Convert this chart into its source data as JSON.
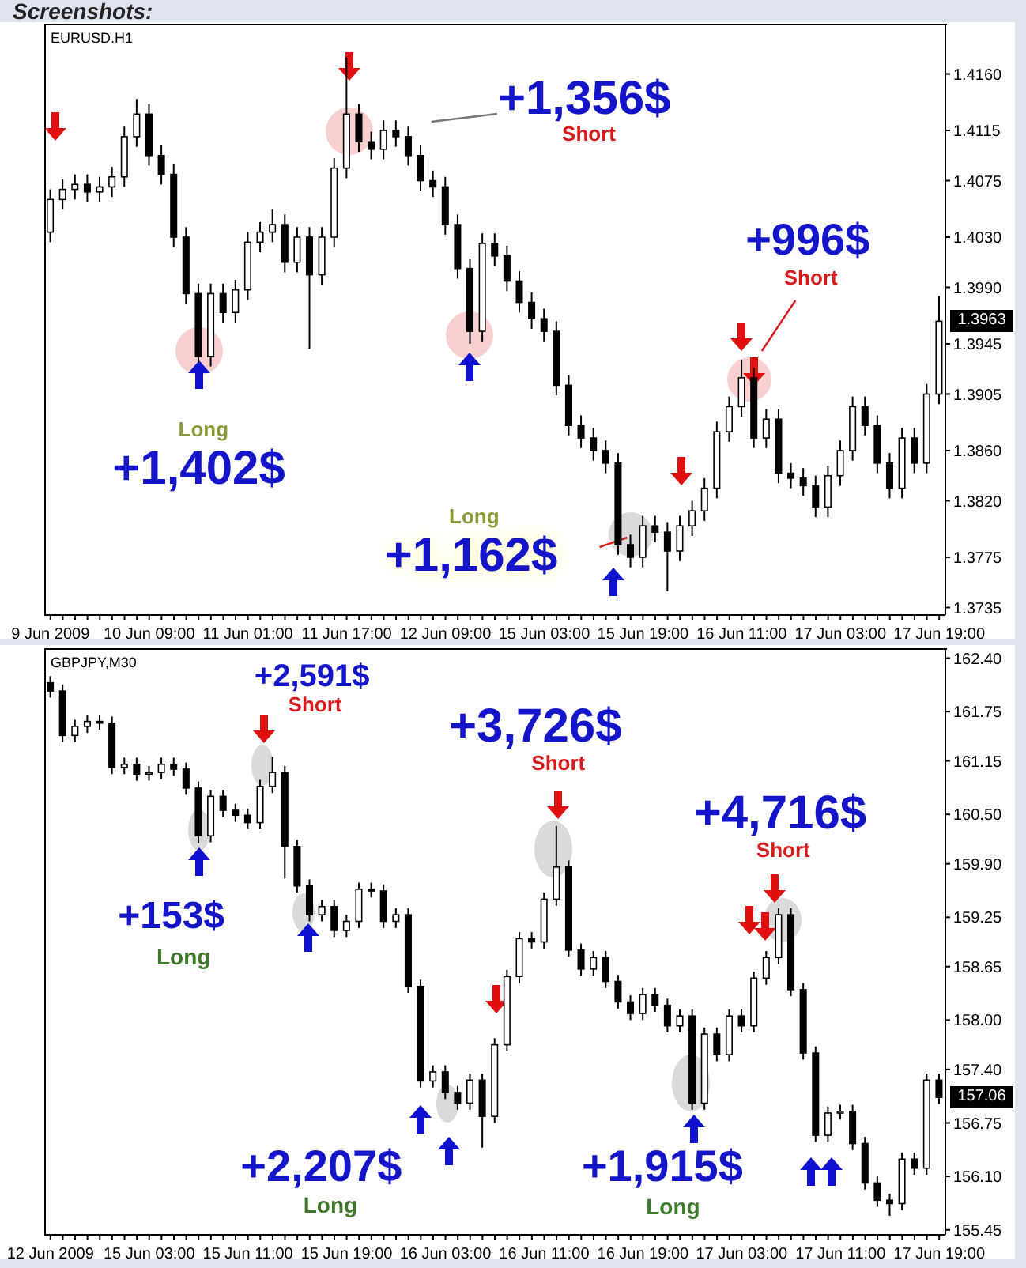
{
  "chart_data": [
    {
      "type": "candlestick",
      "title": "EURUSD.H1",
      "categories": [
        "9 Jun 2009",
        null,
        null,
        null,
        null,
        null,
        null,
        null,
        "10 Jun 09:00",
        null,
        null,
        null,
        null,
        null,
        null,
        null,
        "11 Jun 01:00",
        null,
        null,
        null,
        null,
        null,
        null,
        null,
        "11 Jun 17:00",
        null,
        null,
        null,
        null,
        null,
        null,
        null,
        "12 Jun 09:00",
        null,
        null,
        null,
        null,
        null,
        null,
        null,
        "15 Jun 03:00",
        null,
        null,
        null,
        null,
        null,
        null,
        null,
        "15 Jun 19:00",
        null,
        null,
        null,
        null,
        null,
        null,
        null,
        "16 Jun 11:00",
        null,
        null,
        null,
        null,
        null,
        null,
        null,
        "17 Jun 03:00",
        null,
        null,
        null,
        null,
        null,
        null,
        null,
        "17 Jun 19:00"
      ],
      "ohlc": [
        [
          1.4034,
          1.4068,
          1.4026,
          1.406
        ],
        [
          1.406,
          1.4076,
          1.4052,
          1.4068
        ],
        [
          1.4068,
          1.408,
          1.406,
          1.4072
        ],
        [
          1.4072,
          1.408,
          1.4058,
          1.4066
        ],
        [
          1.4066,
          1.4078,
          1.4058,
          1.407
        ],
        [
          1.407,
          1.4086,
          1.4062,
          1.4078
        ],
        [
          1.4078,
          1.4118,
          1.407,
          1.411
        ],
        [
          1.411,
          1.414,
          1.4102,
          1.4128
        ],
        [
          1.4128,
          1.4136,
          1.4087,
          1.4095
        ],
        [
          1.4095,
          1.4103,
          1.4072,
          1.408
        ],
        [
          1.408,
          1.4088,
          1.4022,
          1.403
        ],
        [
          1.403,
          1.4038,
          1.3977,
          1.3985
        ],
        [
          1.3985,
          1.3993,
          1.393,
          1.3935
        ],
        [
          1.3935,
          1.3993,
          1.3927,
          1.3985
        ],
        [
          1.3985,
          1.3993,
          1.3962,
          1.397
        ],
        [
          1.397,
          1.3996,
          1.3962,
          1.3988
        ],
        [
          1.3988,
          1.4034,
          1.398,
          1.4026
        ],
        [
          1.4026,
          1.4042,
          1.4018,
          1.4034
        ],
        [
          1.4034,
          1.4052,
          1.4026,
          1.404
        ],
        [
          1.404,
          1.4048,
          1.4002,
          1.401
        ],
        [
          1.401,
          1.4038,
          1.4002,
          1.403
        ],
        [
          1.403,
          1.4038,
          1.3941,
          1.4
        ],
        [
          1.4,
          1.4038,
          1.3992,
          1.403
        ],
        [
          1.403,
          1.4093,
          1.4022,
          1.4085
        ],
        [
          1.4085,
          1.4173,
          1.4077,
          1.4128
        ],
        [
          1.4128,
          1.4136,
          1.4098,
          1.4106
        ],
        [
          1.4106,
          1.4114,
          1.4092,
          1.41
        ],
        [
          1.41,
          1.4123,
          1.4092,
          1.4115
        ],
        [
          1.4115,
          1.4123,
          1.4102,
          1.411
        ],
        [
          1.411,
          1.4118,
          1.4087,
          1.4095
        ],
        [
          1.4095,
          1.4103,
          1.4067,
          1.4075
        ],
        [
          1.4075,
          1.4083,
          1.4062,
          1.407
        ],
        [
          1.407,
          1.4078,
          1.4032,
          1.404
        ],
        [
          1.404,
          1.4048,
          1.3997,
          1.4005
        ],
        [
          1.4005,
          1.4013,
          1.3945,
          1.3955
        ],
        [
          1.3955,
          1.4033,
          1.3947,
          1.4025
        ],
        [
          1.4025,
          1.4033,
          1.4007,
          1.4015
        ],
        [
          1.4015,
          1.4023,
          1.3987,
          1.3995
        ],
        [
          1.3995,
          1.4003,
          1.397,
          1.3978
        ],
        [
          1.3978,
          1.3986,
          1.3957,
          1.3965
        ],
        [
          1.3965,
          1.3973,
          1.3947,
          1.3955
        ],
        [
          1.3955,
          1.3963,
          1.3904,
          1.3912
        ],
        [
          1.3912,
          1.392,
          1.3872,
          1.388
        ],
        [
          1.388,
          1.3888,
          1.3862,
          1.387
        ],
        [
          1.387,
          1.3878,
          1.3852,
          1.386
        ],
        [
          1.386,
          1.3868,
          1.3842,
          1.385
        ],
        [
          1.385,
          1.3858,
          1.3777,
          1.3785
        ],
        [
          1.3785,
          1.3793,
          1.3767,
          1.3775
        ],
        [
          1.3775,
          1.3808,
          1.3767,
          1.38
        ],
        [
          1.38,
          1.3808,
          1.3787,
          1.3795
        ],
        [
          1.3795,
          1.3803,
          1.3748,
          1.378
        ],
        [
          1.378,
          1.3808,
          1.3772,
          1.38
        ],
        [
          1.38,
          1.382,
          1.3792,
          1.3812
        ],
        [
          1.3812,
          1.3838,
          1.3804,
          1.383
        ],
        [
          1.383,
          1.3883,
          1.3822,
          1.3875
        ],
        [
          1.3875,
          1.3903,
          1.3867,
          1.3895
        ],
        [
          1.3895,
          1.3932,
          1.3887,
          1.3918
        ],
        [
          1.3918,
          1.3926,
          1.3862,
          1.387
        ],
        [
          1.387,
          1.3893,
          1.3862,
          1.3885
        ],
        [
          1.3885,
          1.3893,
          1.3834,
          1.3842
        ],
        [
          1.3842,
          1.385,
          1.383,
          1.3838
        ],
        [
          1.3838,
          1.3846,
          1.3824,
          1.3832
        ],
        [
          1.3832,
          1.384,
          1.3807,
          1.3815
        ],
        [
          1.3815,
          1.3848,
          1.3807,
          1.384
        ],
        [
          1.384,
          1.3868,
          1.3832,
          1.386
        ],
        [
          1.386,
          1.3903,
          1.3852,
          1.3895
        ],
        [
          1.3895,
          1.3903,
          1.3872,
          1.388
        ],
        [
          1.388,
          1.3888,
          1.3842,
          1.385
        ],
        [
          1.385,
          1.3858,
          1.3822,
          1.383
        ],
        [
          1.383,
          1.3878,
          1.3822,
          1.387
        ],
        [
          1.387,
          1.3878,
          1.3842,
          1.385
        ],
        [
          1.385,
          1.3913,
          1.3842,
          1.3905
        ],
        [
          1.3905,
          1.3983,
          1.3897,
          1.3963
        ]
      ],
      "ylim": [
        1.3729,
        1.42
      ],
      "yticks": [
        {
          "value": 1.416,
          "label": "1.4160"
        },
        {
          "value": 1.4115,
          "label": "1.4115"
        },
        {
          "value": 1.4075,
          "label": "1.4075"
        },
        {
          "value": 1.403,
          "label": "1.4030"
        },
        {
          "value": 1.399,
          "label": "1.3990"
        },
        {
          "value": 1.3945,
          "label": "1.3945"
        },
        {
          "value": 1.3905,
          "label": "1.3905"
        },
        {
          "value": 1.386,
          "label": "1.3860"
        },
        {
          "value": 1.382,
          "label": "1.3820"
        },
        {
          "value": 1.3775,
          "label": "1.3775"
        },
        {
          "value": 1.3735,
          "label": "1.3735"
        }
      ],
      "annotations": [
        "Screenshots:",
        "+1,402$",
        "Long",
        "+1,356$",
        "Short",
        "+1,162$",
        "Long",
        "+996$",
        "Short",
        {
          "text": "1.3963",
          "y": 1.3963
        }
      ]
    },
    {
      "type": "candlestick",
      "title": "GBPJPY,M30",
      "categories": [
        "12 Jun 2009",
        null,
        null,
        null,
        null,
        null,
        null,
        null,
        "15 Jun 03:00",
        null,
        null,
        null,
        null,
        null,
        null,
        null,
        "15 Jun 11:00",
        null,
        null,
        null,
        null,
        null,
        null,
        null,
        "15 Jun 19:00",
        null,
        null,
        null,
        null,
        null,
        null,
        null,
        "16 Jun 03:00",
        null,
        null,
        null,
        null,
        null,
        null,
        null,
        "16 Jun 11:00",
        null,
        null,
        null,
        null,
        null,
        null,
        null,
        "16 Jun 19:00",
        null,
        null,
        null,
        null,
        null,
        null,
        null,
        "17 Jun 03:00",
        null,
        null,
        null,
        null,
        null,
        null,
        null,
        "17 Jun 11:00",
        null,
        null,
        null,
        null,
        null,
        null,
        null,
        "17 Jun 19:00"
      ],
      "ohlc": [
        [
          162.1,
          162.18,
          161.92,
          162.0
        ],
        [
          162.0,
          162.08,
          161.38,
          161.46
        ],
        [
          161.46,
          161.65,
          161.38,
          161.57
        ],
        [
          161.57,
          161.71,
          161.49,
          161.63
        ],
        [
          161.63,
          161.71,
          161.53,
          161.61
        ],
        [
          161.61,
          161.69,
          160.99,
          161.07
        ],
        [
          161.07,
          161.19,
          160.99,
          161.11
        ],
        [
          161.11,
          161.19,
          160.91,
          160.99
        ],
        [
          160.99,
          161.09,
          160.91,
          161.01
        ],
        [
          161.01,
          161.19,
          160.93,
          161.11
        ],
        [
          161.11,
          161.19,
          160.97,
          161.05
        ],
        [
          161.05,
          161.13,
          160.74,
          160.82
        ],
        [
          160.82,
          160.9,
          160.15,
          160.24
        ],
        [
          160.24,
          160.8,
          160.16,
          160.72
        ],
        [
          160.72,
          160.8,
          160.47,
          160.55
        ],
        [
          160.55,
          160.63,
          160.41,
          160.49
        ],
        [
          160.49,
          160.57,
          160.32,
          160.4
        ],
        [
          160.4,
          160.92,
          160.32,
          160.84
        ],
        [
          160.84,
          161.2,
          160.76,
          161.01
        ],
        [
          161.01,
          161.09,
          159.72,
          160.11
        ],
        [
          160.11,
          160.19,
          159.55,
          159.63
        ],
        [
          159.63,
          159.71,
          159.2,
          159.28
        ],
        [
          159.28,
          159.46,
          159.2,
          159.38
        ],
        [
          159.38,
          159.46,
          159.01,
          159.09
        ],
        [
          159.09,
          159.28,
          159.01,
          159.2
        ],
        [
          159.2,
          159.67,
          159.12,
          159.59
        ],
        [
          159.59,
          159.67,
          159.49,
          159.57
        ],
        [
          159.57,
          159.65,
          159.12,
          159.2
        ],
        [
          159.2,
          159.36,
          159.12,
          159.28
        ],
        [
          159.28,
          159.36,
          158.33,
          158.41
        ],
        [
          158.41,
          158.49,
          157.18,
          157.26
        ],
        [
          157.26,
          157.45,
          157.18,
          157.37
        ],
        [
          157.37,
          157.45,
          157.04,
          157.12
        ],
        [
          157.12,
          157.2,
          156.91,
          156.99
        ],
        [
          156.99,
          157.35,
          156.91,
          157.27
        ],
        [
          157.27,
          157.35,
          156.45,
          156.83
        ],
        [
          156.83,
          157.78,
          156.75,
          157.7
        ],
        [
          157.7,
          158.61,
          157.62,
          158.53
        ],
        [
          158.53,
          159.07,
          158.45,
          158.99
        ],
        [
          158.99,
          159.07,
          158.87,
          158.95
        ],
        [
          158.95,
          159.55,
          158.87,
          159.47
        ],
        [
          159.47,
          160.36,
          159.39,
          159.86
        ],
        [
          159.86,
          159.94,
          158.77,
          158.85
        ],
        [
          158.85,
          158.93,
          158.54,
          158.62
        ],
        [
          158.62,
          158.84,
          158.54,
          158.76
        ],
        [
          158.76,
          158.84,
          158.39,
          158.47
        ],
        [
          158.47,
          158.55,
          158.14,
          158.22
        ],
        [
          158.22,
          158.3,
          158.0,
          158.08
        ],
        [
          158.08,
          158.39,
          158.0,
          158.31
        ],
        [
          158.31,
          158.39,
          158.1,
          158.18
        ],
        [
          158.18,
          158.26,
          157.85,
          157.93
        ],
        [
          157.93,
          158.13,
          157.85,
          158.05
        ],
        [
          158.05,
          158.13,
          156.91,
          156.99
        ],
        [
          156.99,
          157.91,
          156.91,
          157.83
        ],
        [
          157.83,
          157.91,
          157.5,
          157.58
        ],
        [
          157.58,
          158.13,
          157.5,
          158.05
        ],
        [
          158.05,
          158.13,
          157.85,
          157.93
        ],
        [
          157.93,
          158.59,
          157.85,
          158.51
        ],
        [
          158.51,
          158.84,
          158.43,
          158.76
        ],
        [
          158.76,
          159.36,
          158.68,
          159.28
        ],
        [
          159.28,
          159.36,
          158.29,
          158.37
        ],
        [
          158.37,
          158.45,
          157.52,
          157.6
        ],
        [
          157.6,
          157.68,
          156.52,
          156.6
        ],
        [
          156.6,
          156.95,
          156.52,
          156.87
        ],
        [
          156.87,
          156.97,
          156.79,
          156.89
        ],
        [
          156.89,
          156.97,
          156.42,
          156.5
        ],
        [
          156.5,
          156.58,
          155.94,
          156.02
        ],
        [
          156.02,
          156.1,
          155.73,
          155.81
        ],
        [
          155.81,
          155.89,
          155.62,
          155.77
        ],
        [
          155.77,
          156.39,
          155.69,
          156.31
        ],
        [
          156.31,
          156.39,
          156.12,
          156.2
        ],
        [
          156.2,
          157.35,
          156.12,
          157.27
        ],
        [
          157.27,
          157.35,
          156.98,
          157.06
        ]
      ],
      "ylim": [
        155.39,
        162.52
      ],
      "yticks": [
        {
          "value": 162.4,
          "label": "162.40"
        },
        {
          "value": 161.75,
          "label": "161.75"
        },
        {
          "value": 161.15,
          "label": "161.15"
        },
        {
          "value": 160.5,
          "label": "160.50"
        },
        {
          "value": 159.9,
          "label": "159.90"
        },
        {
          "value": 159.25,
          "label": "159.25"
        },
        {
          "value": 158.65,
          "label": "158.65"
        },
        {
          "value": 158,
          "label": "158.00"
        },
        {
          "value": 157.4,
          "label": "157.40"
        },
        {
          "value": 156.75,
          "label": "156.75"
        },
        {
          "value": 156.1,
          "label": "156.10"
        },
        {
          "value": 155.45,
          "label": "155.45"
        }
      ],
      "annotations": [
        "+2,591$",
        "Short",
        "+3,726$",
        "Short",
        "+4,716$",
        "Short",
        "+153$",
        "Long",
        "+2,207$",
        "Long",
        "+1,915$",
        "Long",
        {
          "text": "157.06",
          "y": 157.06
        }
      ]
    }
  ]
}
